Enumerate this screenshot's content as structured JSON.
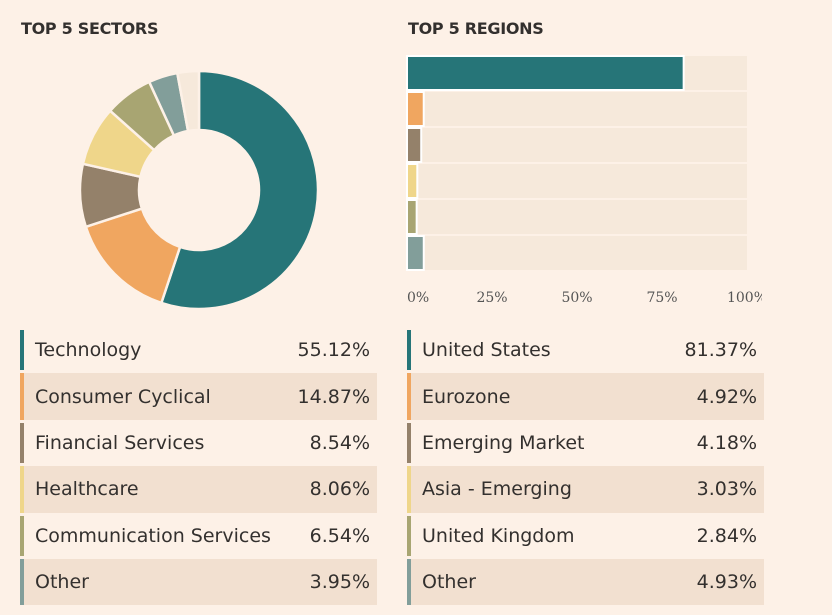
{
  "chart_data": [
    {
      "type": "pie",
      "variant": "donut",
      "title": "TOP 5 SECTORS",
      "categories": [
        "Technology",
        "Consumer Cyclical",
        "Financial Services",
        "Healthcare",
        "Communication Services",
        "Other"
      ],
      "values": [
        55.12,
        14.87,
        8.54,
        8.06,
        6.54,
        3.95
      ],
      "labels": [
        "55.12%",
        "14.87%",
        "8.54%",
        "8.06%",
        "6.54%",
        "3.95%"
      ],
      "colors": [
        "#267578",
        "#f0a660",
        "#94816a",
        "#efd68a",
        "#a8a572",
        "#829e9a"
      ],
      "remainder_color": "#f6e9db"
    },
    {
      "type": "bar",
      "orientation": "horizontal",
      "title": "TOP 5 REGIONS",
      "categories": [
        "United States",
        "Eurozone",
        "Emerging Market",
        "Asia - Emerging",
        "United Kingdom",
        "Other"
      ],
      "values": [
        81.37,
        4.92,
        4.18,
        3.03,
        2.84,
        4.93
      ],
      "labels": [
        "81.37%",
        "4.92%",
        "4.18%",
        "3.03%",
        "2.84%",
        "4.93%"
      ],
      "colors": [
        "#267578",
        "#f0a660",
        "#94816a",
        "#efd68a",
        "#a8a572",
        "#829e9a"
      ],
      "track_color": "#f6e9db",
      "xlim": [
        0,
        100
      ],
      "xticks": [
        0,
        25,
        50,
        75,
        100
      ],
      "xtick_labels": [
        "0%",
        "25%",
        "50%",
        "75%",
        "100%"
      ]
    }
  ]
}
